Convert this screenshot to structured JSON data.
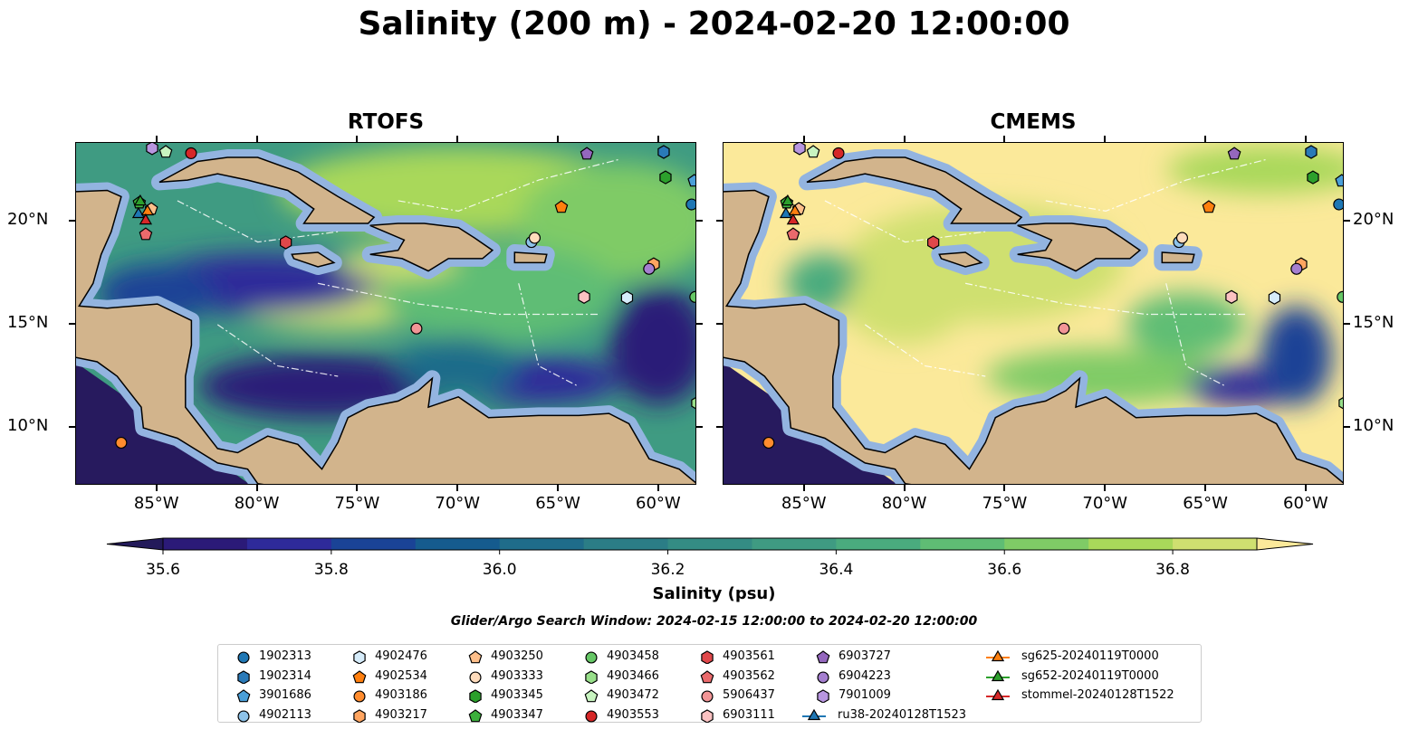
{
  "title": "Salinity (200 m) - 2024-02-20 12:00:00",
  "panels": [
    {
      "title": "RTOFS"
    },
    {
      "title": "CMEMS"
    }
  ],
  "axes": {
    "lon_ticks": [
      {
        "lon": -85,
        "label": "85°W"
      },
      {
        "lon": -80,
        "label": "80°W"
      },
      {
        "lon": -75,
        "label": "75°W"
      },
      {
        "lon": -70,
        "label": "70°W"
      },
      {
        "lon": -65,
        "label": "65°W"
      },
      {
        "lon": -60,
        "label": "60°W"
      }
    ],
    "lat_ticks": [
      {
        "lat": 20,
        "label": "20°N"
      },
      {
        "lat": 15,
        "label": "15°N"
      },
      {
        "lat": 10,
        "label": "10°N"
      }
    ],
    "lon_range": [
      -89.05,
      -58.1
    ],
    "lat_range": [
      7.2,
      23.8
    ]
  },
  "colorbar": {
    "label": "Salinity (psu)",
    "min": 35.6,
    "max": 36.9,
    "step": 0.1,
    "ticks": [
      "35.6",
      "35.8",
      "36.0",
      "36.2",
      "36.4",
      "36.6",
      "36.8"
    ],
    "colors": [
      "#2b1a78",
      "#2e2a9a",
      "#1a4396",
      "#155b8e",
      "#1f6c8a",
      "#2b7d86",
      "#348c84",
      "#3f9b82",
      "#4aab7e",
      "#5fbd74",
      "#7fcb66",
      "#a9d85a",
      "#cfe070"
    ],
    "under_color": "#231a5a",
    "over_color": "#fbe99a"
  },
  "search_window": "Glider/Argo Search Window: 2024-02-15 12:00:00 to 2024-02-20 12:00:00",
  "legend": [
    {
      "label": "1902313",
      "shape": "circle",
      "color": "#1f77b4",
      "lon": -58.38,
      "lat": 20.82
    },
    {
      "label": "1902314",
      "shape": "hex",
      "color": "#2a7ab8",
      "lon": -59.77,
      "lat": 23.36
    },
    {
      "label": "3901686",
      "shape": "pent",
      "color": "#4a9fd8",
      "lon": -58.25,
      "lat": 21.96
    },
    {
      "label": "4902113",
      "shape": "circle",
      "color": "#8ec3ea",
      "lon": -66.36,
      "lat": 19.0
    },
    {
      "label": "4902476",
      "shape": "hex",
      "color": "#d6ecfa",
      "lon": -61.6,
      "lat": 16.3
    },
    {
      "label": "4902534",
      "shape": "pent",
      "color": "#ff7f0e",
      "lon": -64.87,
      "lat": 20.69
    },
    {
      "label": "4903186",
      "shape": "circle",
      "color": "#ff8c2e",
      "lon": -86.8,
      "lat": 9.28
    },
    {
      "label": "4903217",
      "shape": "hex",
      "color": "#ffa560",
      "lon": -60.27,
      "lat": 17.92
    },
    {
      "label": "4903250",
      "shape": "pent",
      "color": "#ffbf8a",
      "lon": -85.3,
      "lat": 20.6
    },
    {
      "label": "4903333",
      "shape": "circle",
      "color": "#ffdcbc",
      "lon": -66.2,
      "lat": 19.2
    },
    {
      "label": "4903345",
      "shape": "hex",
      "color": "#2ca02c",
      "lon": -59.68,
      "lat": 22.13
    },
    {
      "label": "4903347",
      "shape": "pent",
      "color": "#3cb03c",
      "lon": -85.9,
      "lat": 20.9
    },
    {
      "label": "4903458",
      "shape": "circle",
      "color": "#66c766",
      "lon": -58.2,
      "lat": 16.34
    },
    {
      "label": "4903466",
      "shape": "hex",
      "color": "#98df8a",
      "lon": -58.1,
      "lat": 11.2
    },
    {
      "label": "4903472",
      "shape": "pent",
      "color": "#c8f4c0",
      "lon": -84.58,
      "lat": 23.36
    },
    {
      "label": "4903553",
      "shape": "circle",
      "color": "#d62728",
      "lon": -83.32,
      "lat": 23.3
    },
    {
      "label": "4903561",
      "shape": "hex",
      "color": "#e0474a",
      "lon": -78.6,
      "lat": 18.98
    },
    {
      "label": "4903562",
      "shape": "pent",
      "color": "#ea6a6c",
      "lon": -85.58,
      "lat": 19.37
    },
    {
      "label": "5906437",
      "shape": "circle",
      "color": "#f29596",
      "lon": -72.09,
      "lat": 14.81
    },
    {
      "label": "6903111",
      "shape": "hex",
      "color": "#fbc2c2",
      "lon": -63.74,
      "lat": 16.34
    },
    {
      "label": "6903727",
      "shape": "pent",
      "color": "#9467bd",
      "lon": -63.6,
      "lat": 23.27
    },
    {
      "label": "6904223",
      "shape": "circle",
      "color": "#a57fd0",
      "lon": -60.5,
      "lat": 17.7
    },
    {
      "label": "7901009",
      "shape": "hex",
      "color": "#b896e0",
      "lon": -85.26,
      "lat": 23.54
    },
    {
      "label": "ru38-20240128T1523",
      "shape": "tri",
      "color": "#1f77b4",
      "line": true,
      "lon": -85.94,
      "lat": 20.34
    },
    {
      "label": "sg625-20240119T0000",
      "shape": "tri",
      "color": "#ff7f0e",
      "line": true,
      "lon": -85.49,
      "lat": 20.47
    },
    {
      "label": "sg652-20240119T0000",
      "shape": "tri",
      "color": "#2ca02c",
      "line": true,
      "lon": -85.85,
      "lat": 20.95
    },
    {
      "label": "stommel-20240128T1522",
      "shape": "tri",
      "color": "#d62728",
      "line": true,
      "lon": -85.58,
      "lat": 20.03
    }
  ]
}
